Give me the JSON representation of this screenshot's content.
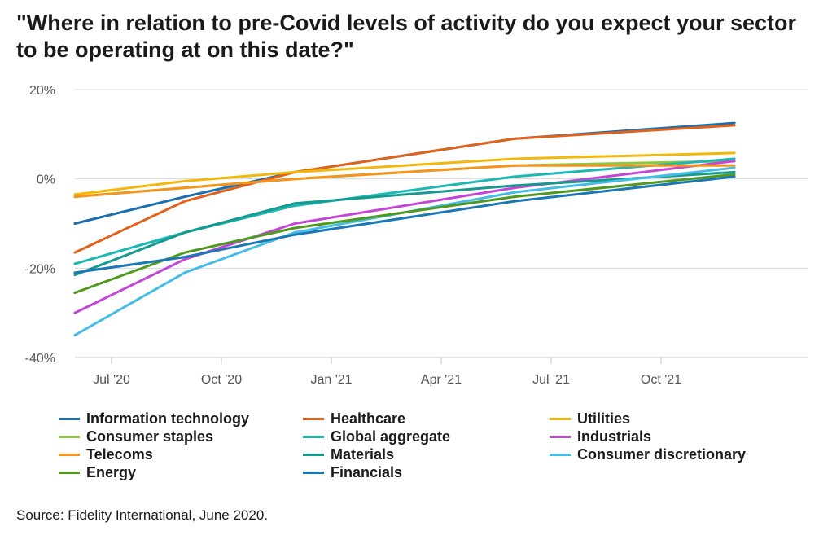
{
  "chart_data": {
    "type": "line",
    "title": "\"Where in relation to pre-Covid levels of activity do you expect your sector to be operating at on this date?\"",
    "xlabel": "",
    "ylabel": "",
    "ylim": [
      -40,
      20
    ],
    "y_ticks": [
      20,
      0,
      -20,
      -40
    ],
    "y_tick_labels": [
      "20%",
      "0%",
      "-20%",
      "-40%"
    ],
    "x_range": [
      0,
      20
    ],
    "x_ticks": [
      1,
      4,
      7,
      10,
      13,
      16
    ],
    "x_tick_labels": [
      "Jul '20",
      "Oct '20",
      "Jan '21",
      "Apr '21",
      "Jul '21",
      "Oct '21"
    ],
    "x": [
      0,
      3,
      6,
      12,
      18
    ],
    "grid": true,
    "series": [
      {
        "name": "Information technology",
        "color": "#1a6faf",
        "values": [
          -10,
          -4,
          1.5,
          9,
          12.5
        ]
      },
      {
        "name": "Healthcare",
        "color": "#e2621b",
        "values": [
          -16.5,
          -5,
          1.5,
          9,
          12
        ]
      },
      {
        "name": "Utilities",
        "color": "#f2b90c",
        "values": [
          -3.5,
          -0.5,
          1.5,
          4.5,
          5.8
        ]
      },
      {
        "name": "Consumer staples",
        "color": "#8ec63f",
        "values": [
          -4,
          -2,
          0,
          3,
          4
        ]
      },
      {
        "name": "Global aggregate",
        "color": "#1cb8b4",
        "values": [
          -19,
          -12,
          -6,
          0.5,
          4.5
        ]
      },
      {
        "name": "Industrials",
        "color": "#c446d6",
        "values": [
          -30,
          -18,
          -10,
          -2,
          4
        ]
      },
      {
        "name": "Telecoms",
        "color": "#f7941d",
        "values": [
          -4,
          -2,
          0,
          3,
          3
        ]
      },
      {
        "name": "Materials",
        "color": "#179a8e",
        "values": [
          -21.5,
          -12,
          -5.5,
          -1.5,
          1.5
        ]
      },
      {
        "name": "Consumer discretionary",
        "color": "#45bde6",
        "values": [
          -35,
          -21,
          -12,
          -3,
          2.5
        ]
      },
      {
        "name": "Energy",
        "color": "#4f9a1e",
        "values": [
          -25.5,
          -16.5,
          -11,
          -4,
          1
        ]
      },
      {
        "name": "Financials",
        "color": "#1c77b5",
        "values": [
          -21,
          -17.5,
          -12.5,
          -5,
          0.5
        ]
      }
    ],
    "legend": {
      "placement": "bottom",
      "columns": 3
    }
  },
  "source": "Source: Fidelity International, June 2020."
}
